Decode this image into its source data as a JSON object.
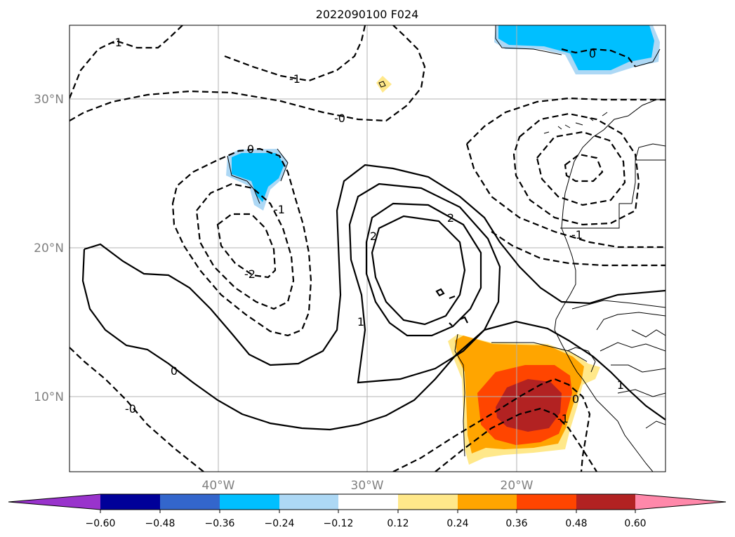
{
  "title": "2022090100 F024",
  "map": {
    "lat_labels": [
      "30°N",
      "20°N",
      "10°N"
    ],
    "lon_labels": [
      "40°W",
      "30°W",
      "20°W"
    ],
    "contour_labels": {
      "neg1_nw": "-1",
      "neg1_n": "-1",
      "zero_n": "-0",
      "zero_cyc": "0",
      "neg1_cyc": "-1",
      "neg2_cyc": "-2",
      "pos2_a": "2",
      "pos2_b": "2",
      "pos1": "1",
      "zero_low": "0",
      "zero_sw": "-0",
      "zero_ne": "0",
      "neg1_ne": "-1",
      "zero_se": "0",
      "neg1_se": "-1",
      "pos1_coast": "1"
    }
  },
  "colorbar": {
    "ticks": [
      "−0.60",
      "−0.48",
      "−0.36",
      "−0.24",
      "−0.12",
      "0.12",
      "0.24",
      "0.36",
      "0.48",
      "0.60"
    ],
    "colors": [
      "#9933cc",
      "#000099",
      "#3366cc",
      "#00bfff",
      "#add8f5",
      "#ffffff",
      "#ffe88a",
      "#ffa500",
      "#ff4500",
      "#b22222",
      "#ff88aa"
    ]
  }
}
